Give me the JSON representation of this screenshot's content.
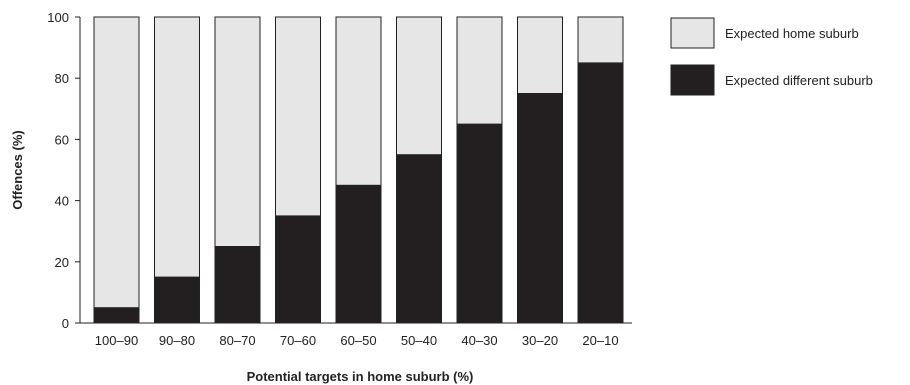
{
  "chart_data": {
    "type": "bar",
    "stacked": true,
    "categories": [
      "100–90",
      "90–80",
      "80–70",
      "70–60",
      "60–50",
      "50–40",
      "40–30",
      "30–20",
      "20–10"
    ],
    "series": [
      {
        "name": "Expected different suburb",
        "values": [
          5,
          15,
          25,
          35,
          45,
          55,
          65,
          75,
          85
        ],
        "color": "#231f20"
      },
      {
        "name": "Expected home suburb",
        "values": [
          95,
          85,
          75,
          65,
          55,
          45,
          35,
          25,
          15
        ],
        "color": "#e6e6e6"
      }
    ],
    "xlabel": "Potential targets in home suburb (%)",
    "ylabel": "Offences (%)",
    "ylim": [
      0,
      100
    ],
    "yticks": [
      0,
      20,
      40,
      60,
      80,
      100
    ],
    "grid": false,
    "legend": {
      "position": "right",
      "entries": [
        "Expected home suburb",
        "Expected different suburb"
      ]
    }
  }
}
